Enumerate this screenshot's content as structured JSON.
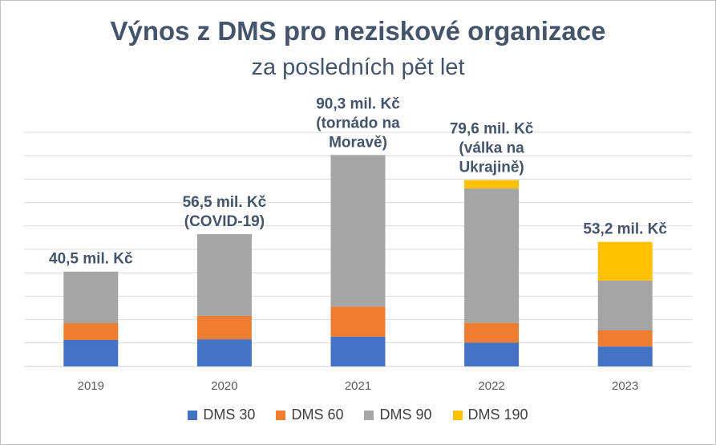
{
  "chart_data": {
    "type": "bar",
    "stacked": true,
    "title": "Výnos z DMS pro neziskové organizace",
    "subtitle": "za posledních pět let",
    "categories": [
      "2019",
      "2020",
      "2021",
      "2022",
      "2023"
    ],
    "series": [
      {
        "name": "DMS 30",
        "color": "#4472c4",
        "values": [
          11.3,
          11.6,
          12.7,
          10.2,
          8.5
        ]
      },
      {
        "name": "DMS 60",
        "color": "#ed7d31",
        "values": [
          7.2,
          10.0,
          12.8,
          8.4,
          6.9
        ]
      },
      {
        "name": "DMS 90",
        "color": "#a5a5a5",
        "values": [
          22.0,
          34.9,
          64.8,
          57.4,
          21.3
        ]
      },
      {
        "name": "DMS 190",
        "color": "#ffc000",
        "values": [
          0,
          0,
          0,
          3.6,
          16.5
        ]
      }
    ],
    "totals_labels": [
      [
        "40,5 mil. Kč"
      ],
      [
        "56,5 mil. Kč",
        "(COVID-19)"
      ],
      [
        "90,3 mil. Kč",
        "(tornádo na",
        "Moravě)"
      ],
      [
        "79,6 mil. Kč",
        "(válka na",
        "Ukrajině)"
      ],
      [
        "53,2 mil. Kč"
      ]
    ],
    "totals": [
      40.5,
      56.5,
      90.3,
      79.6,
      53.2
    ],
    "ylim": [
      0,
      100
    ],
    "grid": true,
    "y_ticks_visible": false,
    "legend_position": "bottom"
  }
}
